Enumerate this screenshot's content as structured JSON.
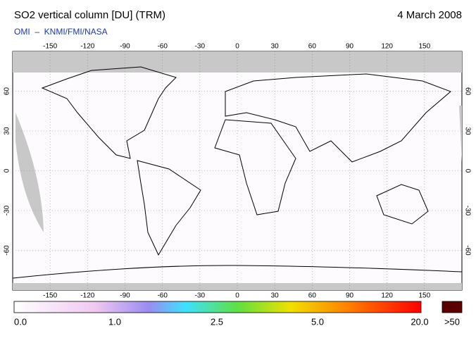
{
  "header": {
    "title": "SO2 vertical column [DU] (TRM)",
    "date": "4 March 2008",
    "subtitle": "OMI  –  KNMI/FMI/NASA"
  },
  "map": {
    "lon_ticks": [
      -150,
      -120,
      -90,
      -60,
      -30,
      0,
      30,
      60,
      90,
      120,
      150
    ],
    "lat_ticks": [
      60,
      30,
      0,
      -30,
      -60
    ]
  },
  "colorbar": {
    "labels": [
      "0.0",
      "1.0",
      "2.5",
      "5.0",
      "20.0"
    ],
    "overflow_label": ">50"
  }
}
